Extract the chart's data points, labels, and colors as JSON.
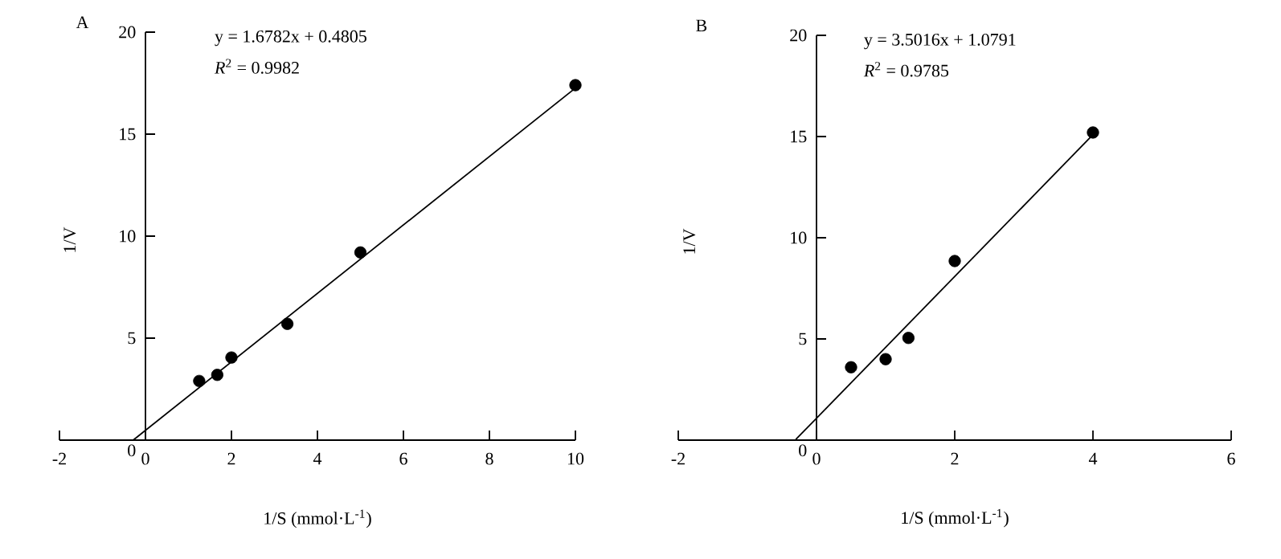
{
  "chart_data": [
    {
      "type": "scatter",
      "title": "A",
      "xlabel": "1/S (mmol·L$^{-1}$)",
      "ylabel": "1/V",
      "marker": "circle",
      "annotations": [
        "y = 1.6782x + 0.4805",
        "*R*$^{2}$ = 0.9982"
      ],
      "xlim": [
        -2,
        10
      ],
      "ylim": [
        0,
        20
      ],
      "xticks": [
        -2,
        0,
        2,
        4,
        6,
        8,
        10
      ],
      "yticks": [
        0,
        5,
        10,
        15,
        20
      ],
      "series": [
        {
          "color": "#000000",
          "x": [
            1.25,
            1.67,
            2,
            3.3,
            5,
            10
          ],
          "values": [
            2.9,
            3.2,
            4.05,
            5.7,
            9.2,
            17.4
          ]
        },
        {
          "type": "line",
          "color": "#000000",
          "marker": "none",
          "x": [
            -0.28,
            10
          ],
          "values": [
            0.01,
            17.26
          ]
        }
      ]
    },
    {
      "type": "scatter",
      "title": "B",
      "xlabel": "1/S (mmol·L$^{-1}$)",
      "ylabel": "1/V",
      "marker": "circle",
      "annotations": [
        "y = 3.5016x + 1.0791",
        "*R*$^{2}$ = 0.9785"
      ],
      "xlim": [
        -2,
        6
      ],
      "ylim": [
        0,
        20
      ],
      "xticks": [
        -2,
        0,
        2,
        4,
        6
      ],
      "yticks": [
        0,
        5,
        10,
        15,
        20
      ],
      "series": [
        {
          "color": "#000000",
          "x": [
            0.5,
            1,
            1.33,
            2,
            4
          ],
          "values": [
            3.6,
            4.0,
            5.05,
            8.85,
            15.2
          ]
        },
        {
          "type": "line",
          "color": "#000000",
          "marker": "none",
          "x": [
            -0.3,
            4
          ],
          "values": [
            0.03,
            15.09
          ]
        }
      ]
    }
  ]
}
